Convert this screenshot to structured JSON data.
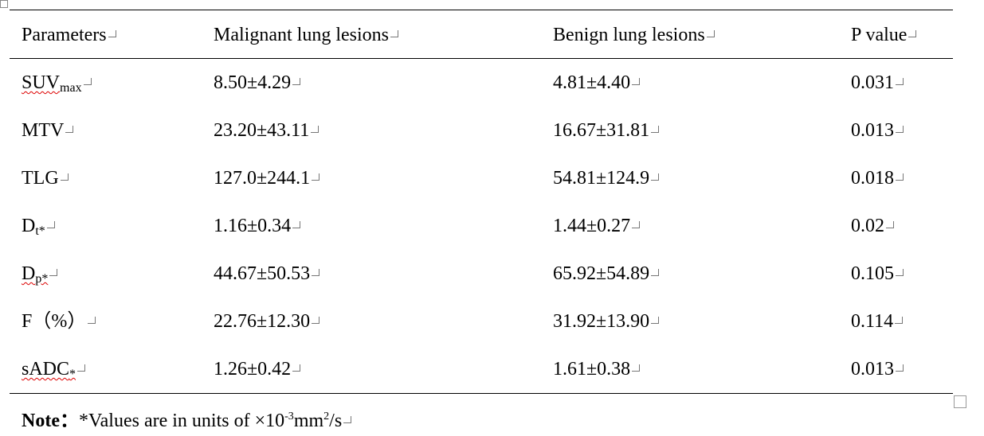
{
  "table": {
    "header": [
      "Parameters",
      "Malignant lung lesions",
      "Benign lung lesions",
      "P value"
    ],
    "rows": [
      [
        {
          "main": "SUV",
          "sub": "max"
        },
        "8.50±4.29",
        "4.81±4.40",
        "0.031"
      ],
      [
        {
          "main": "MTV"
        },
        "23.20±43.11",
        "16.67±31.81",
        "0.013"
      ],
      [
        {
          "main": "TLG"
        },
        "127.0±244.1",
        "54.81±124.9",
        "0.018"
      ],
      [
        {
          "main": "D",
          "sub": "t*"
        },
        "1.16±0.34",
        "1.44±0.27",
        "0.02"
      ],
      [
        {
          "main": "D",
          "sub": "p*"
        },
        "44.67±50.53",
        "65.92±54.89",
        "0.105"
      ],
      [
        {
          "main": "F（%）"
        },
        "22.76±12.30",
        "31.92±13.90",
        "0.114"
      ],
      [
        {
          "main": "sADC",
          "sub": "*"
        },
        "1.26±0.42",
        "1.61±0.38",
        "0.013"
      ]
    ]
  },
  "note": {
    "label": "Note：",
    "text": "*Values are in units of ×10",
    "exp": "-3",
    "unit": "mm",
    "exp2": "2",
    "tail": "/s"
  }
}
